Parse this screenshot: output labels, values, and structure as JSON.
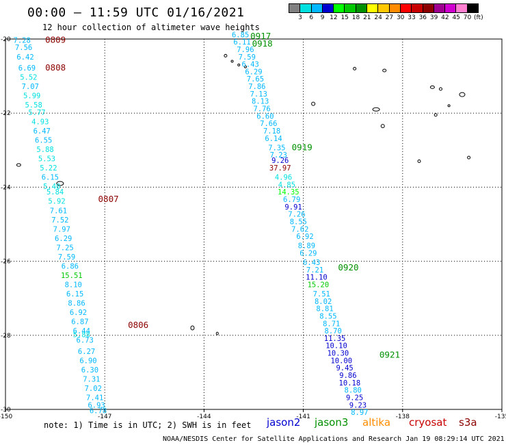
{
  "header": {
    "title": "00:00 – 11:59 UTC 01/16/2021",
    "subtitle": "12 hour collection of altimeter wave heights"
  },
  "colorbar": {
    "colors": [
      "#808080",
      "#00e0e0",
      "#00b8ff",
      "#0000d0",
      "#00ff00",
      "#00c800",
      "#009000",
      "#ffff00",
      "#ffc800",
      "#ff8c00",
      "#ff0000",
      "#c80000",
      "#8c0000",
      "#a00090",
      "#d000d0",
      "#ff80d0",
      "#000000"
    ],
    "labels": [
      "3",
      "6",
      "9",
      "12",
      "15",
      "18",
      "21",
      "24",
      "27",
      "30",
      "33",
      "36",
      "39",
      "42",
      "45",
      "70",
      "(ft)"
    ]
  },
  "axes": {
    "x_ticks": [
      "-150",
      "-147",
      "-144",
      "-141",
      "-138",
      "-135"
    ],
    "y_ticks": [
      "-20",
      "-22",
      "-24",
      "-26",
      "-28",
      "-30"
    ]
  },
  "legend": {
    "note": "note: 1) Time is in UTC; 2) SWH is in feet",
    "satellites": [
      {
        "name": "jason2",
        "color": "#0000d0"
      },
      {
        "name": "jason3",
        "color": "#009000"
      },
      {
        "name": "altika",
        "color": "#ff8c00"
      },
      {
        "name": "cryosat",
        "color": "#c80000"
      },
      {
        "name": "s3a",
        "color": "#8c0000"
      }
    ],
    "credit": "NOAA/NESDIS Center for Satellite Applications and Research   Jan 19 08:29:14 UTC 2021"
  },
  "pass_labels": [
    {
      "text": "0809",
      "color": "#8c0000",
      "lon": -148.8,
      "lat": -20.1
    },
    {
      "text": "0808",
      "color": "#8c0000",
      "lon": -148.8,
      "lat": -20.85
    },
    {
      "text": "0807",
      "color": "#8c0000",
      "lon": -147.2,
      "lat": -24.4
    },
    {
      "text": "0806",
      "color": "#8c0000",
      "lon": -146.3,
      "lat": -27.8
    },
    {
      "text": "0917",
      "color": "#009000",
      "lon": -142.6,
      "lat": -20.0
    },
    {
      "text": "0918",
      "color": "#009000",
      "lon": -142.55,
      "lat": -20.2
    },
    {
      "text": "0919",
      "color": "#009000",
      "lon": -141.35,
      "lat": -23.0
    },
    {
      "text": "0920",
      "color": "#009000",
      "lon": -139.95,
      "lat": -26.25
    },
    {
      "text": "0921",
      "color": "#009000",
      "lon": -138.7,
      "lat": -28.6
    }
  ],
  "chart_data": {
    "type": "scatter",
    "title": "00:00 – 11:59 UTC 01/16/2021",
    "subtitle": "12 hour collection of altimeter wave heights",
    "xlim": [
      -150,
      -135
    ],
    "ylim": [
      -30,
      -20
    ],
    "series": [
      {
        "name": "s3a",
        "points": [
          {
            "lon": -149.5,
            "lat": -20.1,
            "swh": "7.28",
            "color": "#00b8ff"
          },
          {
            "lon": -149.45,
            "lat": -20.3,
            "swh": "7.56",
            "color": "#00b8ff"
          },
          {
            "lon": -149.4,
            "lat": -20.55,
            "swh": "6.42",
            "color": "#00b8ff"
          },
          {
            "lon": -149.35,
            "lat": -20.85,
            "swh": "6.69",
            "color": "#00b8ff"
          },
          {
            "lon": -149.3,
            "lat": -21.1,
            "swh": "5.52",
            "color": "#00e0e0"
          },
          {
            "lon": -149.25,
            "lat": -21.35,
            "swh": "7.07",
            "color": "#00b8ff"
          },
          {
            "lon": -149.2,
            "lat": -21.6,
            "swh": "5.99",
            "color": "#00e0e0"
          },
          {
            "lon": -149.15,
            "lat": -21.85,
            "swh": "5.58",
            "color": "#00e0e0"
          },
          {
            "lon": -149.05,
            "lat": -22.05,
            "swh": "5.77",
            "color": "#00e0e0"
          },
          {
            "lon": -148.95,
            "lat": -22.3,
            "swh": "4.93",
            "color": "#00e0e0"
          },
          {
            "lon": -148.9,
            "lat": -22.55,
            "swh": "6.47",
            "color": "#00b8ff"
          },
          {
            "lon": -148.85,
            "lat": -22.8,
            "swh": "6.55",
            "color": "#00b8ff"
          },
          {
            "lon": -148.8,
            "lat": -23.05,
            "swh": "5.88",
            "color": "#00e0e0"
          },
          {
            "lon": -148.75,
            "lat": -23.3,
            "swh": "5.53",
            "color": "#00e0e0"
          },
          {
            "lon": -148.7,
            "lat": -23.55,
            "swh": "5.22",
            "color": "#00e0e0"
          },
          {
            "lon": -148.65,
            "lat": -23.8,
            "swh": "6.15",
            "color": "#00b8ff"
          },
          {
            "lon": -148.6,
            "lat": -24.05,
            "swh": "5.40",
            "color": "#00e0e0"
          },
          {
            "lon": -148.5,
            "lat": -24.2,
            "swh": "5.84",
            "color": "#00e0e0"
          },
          {
            "lon": -148.45,
            "lat": -24.45,
            "swh": "5.92",
            "color": "#00e0e0"
          },
          {
            "lon": -148.4,
            "lat": -24.7,
            "swh": "7.61",
            "color": "#00b8ff"
          },
          {
            "lon": -148.35,
            "lat": -24.95,
            "swh": "7.52",
            "color": "#00b8ff"
          },
          {
            "lon": -148.3,
            "lat": -25.2,
            "swh": "7.97",
            "color": "#00b8ff"
          },
          {
            "lon": -148.25,
            "lat": -25.45,
            "swh": "6.29",
            "color": "#00b8ff"
          },
          {
            "lon": -148.2,
            "lat": -25.7,
            "swh": "7.25",
            "color": "#00b8ff"
          },
          {
            "lon": -148.15,
            "lat": -25.95,
            "swh": "7.59",
            "color": "#00b8ff"
          },
          {
            "lon": -148.05,
            "lat": -26.2,
            "swh": "6.86",
            "color": "#00b8ff"
          },
          {
            "lon": -148.0,
            "lat": -26.45,
            "swh": "15.51",
            "color": "#00c800"
          },
          {
            "lon": -147.95,
            "lat": -26.7,
            "swh": "8.10",
            "color": "#00b8ff"
          },
          {
            "lon": -147.9,
            "lat": -26.95,
            "swh": "6.15",
            "color": "#00b8ff"
          },
          {
            "lon": -147.85,
            "lat": -27.2,
            "swh": "8.86",
            "color": "#00b8ff"
          },
          {
            "lon": -147.8,
            "lat": -27.45,
            "swh": "6.92",
            "color": "#00b8ff"
          },
          {
            "lon": -147.75,
            "lat": -27.7,
            "swh": "6.87",
            "color": "#00b8ff"
          },
          {
            "lon": -147.7,
            "lat": -27.95,
            "swh": "6.44",
            "color": "#00b8ff"
          },
          {
            "lon": -147.7,
            "lat": -28.05,
            "swh": "5.88",
            "color": "#00e0e0"
          },
          {
            "lon": -147.6,
            "lat": -28.2,
            "swh": "6.73",
            "color": "#00b8ff"
          },
          {
            "lon": -147.55,
            "lat": -28.5,
            "swh": "6.27",
            "color": "#00b8ff"
          },
          {
            "lon": -147.5,
            "lat": -28.75,
            "swh": "6.90",
            "color": "#00b8ff"
          },
          {
            "lon": -147.45,
            "lat": -29.0,
            "swh": "6.30",
            "color": "#00b8ff"
          },
          {
            "lon": -147.4,
            "lat": -29.25,
            "swh": "7.31",
            "color": "#00b8ff"
          },
          {
            "lon": -147.35,
            "lat": -29.5,
            "swh": "7.02",
            "color": "#00b8ff"
          },
          {
            "lon": -147.3,
            "lat": -29.75,
            "swh": "7.41",
            "color": "#00b8ff"
          },
          {
            "lon": -147.25,
            "lat": -29.95,
            "swh": "6.93",
            "color": "#00b8ff"
          },
          {
            "lon": -147.2,
            "lat": -30.1,
            "swh": "6.78",
            "color": "#00b8ff"
          }
        ]
      },
      {
        "name": "jason3",
        "points": [
          {
            "lon": -142.9,
            "lat": -19.95,
            "swh": "6.85",
            "color": "#00b8ff"
          },
          {
            "lon": -142.85,
            "lat": -20.15,
            "swh": "6.11",
            "color": "#00b8ff"
          },
          {
            "lon": -142.75,
            "lat": -20.35,
            "swh": "7.96",
            "color": "#00b8ff"
          },
          {
            "lon": -142.7,
            "lat": -20.55,
            "swh": "7.59",
            "color": "#00b8ff"
          },
          {
            "lon": -142.6,
            "lat": -20.75,
            "swh": "6.43",
            "color": "#00b8ff"
          },
          {
            "lon": -142.5,
            "lat": -20.95,
            "swh": "6.29",
            "color": "#00b8ff"
          },
          {
            "lon": -142.45,
            "lat": -21.15,
            "swh": "7.65",
            "color": "#00b8ff"
          },
          {
            "lon": -142.4,
            "lat": -21.35,
            "swh": "7.86",
            "color": "#00b8ff"
          },
          {
            "lon": -142.35,
            "lat": -21.55,
            "swh": "7.13",
            "color": "#00b8ff"
          },
          {
            "lon": -142.3,
            "lat": -21.75,
            "swh": "8.13",
            "color": "#00b8ff"
          },
          {
            "lon": -142.25,
            "lat": -21.95,
            "swh": "7.76",
            "color": "#00b8ff"
          },
          {
            "lon": -142.15,
            "lat": -22.15,
            "swh": "6.60",
            "color": "#00b8ff"
          },
          {
            "lon": -142.05,
            "lat": -22.35,
            "swh": "7.66",
            "color": "#00b8ff"
          },
          {
            "lon": -141.95,
            "lat": -22.55,
            "swh": "7.18",
            "color": "#00b8ff"
          },
          {
            "lon": -141.9,
            "lat": -22.75,
            "swh": "6.14",
            "color": "#00b8ff"
          },
          {
            "lon": -141.8,
            "lat": -23.0,
            "swh": "7.35",
            "color": "#00b8ff"
          },
          {
            "lon": -141.75,
            "lat": -23.2,
            "swh": "7.23",
            "color": "#00b8ff"
          },
          {
            "lon": -141.7,
            "lat": -23.35,
            "swh": "9.26",
            "color": "#0000d0"
          },
          {
            "lon": -141.7,
            "lat": -23.55,
            "swh": "37.97",
            "color": "#8c0000"
          },
          {
            "lon": -141.6,
            "lat": -23.8,
            "swh": "4.96",
            "color": "#00e0e0"
          },
          {
            "lon": -141.5,
            "lat": -24.0,
            "swh": "4.85",
            "color": "#00e0e0"
          },
          {
            "lon": -141.45,
            "lat": -24.2,
            "swh": "14.35",
            "color": "#00ff00"
          },
          {
            "lon": -141.35,
            "lat": -24.4,
            "swh": "6.79",
            "color": "#00b8ff"
          },
          {
            "lon": -141.3,
            "lat": -24.6,
            "swh": "9.91",
            "color": "#0000d0"
          },
          {
            "lon": -141.2,
            "lat": -24.8,
            "swh": "7.26",
            "color": "#00b8ff"
          },
          {
            "lon": -141.15,
            "lat": -25.0,
            "swh": "8.55",
            "color": "#00b8ff"
          },
          {
            "lon": -141.1,
            "lat": -25.2,
            "swh": "7.62",
            "color": "#00b8ff"
          },
          {
            "lon": -140.95,
            "lat": -25.4,
            "swh": "6.92",
            "color": "#00b8ff"
          },
          {
            "lon": -140.9,
            "lat": -25.65,
            "swh": "8.89",
            "color": "#00b8ff"
          },
          {
            "lon": -140.85,
            "lat": -25.85,
            "swh": "6.29",
            "color": "#00b8ff"
          },
          {
            "lon": -140.75,
            "lat": -26.1,
            "swh": "6.43",
            "color": "#00b8ff"
          },
          {
            "lon": -140.65,
            "lat": -26.3,
            "swh": "7.21",
            "color": "#00b8ff"
          },
          {
            "lon": -140.6,
            "lat": -26.5,
            "swh": "11.10",
            "color": "#0000d0"
          },
          {
            "lon": -140.55,
            "lat": -26.7,
            "swh": "15.20",
            "color": "#00c800"
          },
          {
            "lon": -140.45,
            "lat": -26.95,
            "swh": "7.51",
            "color": "#00b8ff"
          },
          {
            "lon": -140.4,
            "lat": -27.15,
            "swh": "8.02",
            "color": "#00b8ff"
          },
          {
            "lon": -140.35,
            "lat": -27.35,
            "swh": "8.81",
            "color": "#00b8ff"
          },
          {
            "lon": -140.25,
            "lat": -27.55,
            "swh": "8.55",
            "color": "#00b8ff"
          },
          {
            "lon": -140.15,
            "lat": -27.75,
            "swh": "8.71",
            "color": "#00b8ff"
          },
          {
            "lon": -140.1,
            "lat": -27.95,
            "swh": "8.70",
            "color": "#00b8ff"
          },
          {
            "lon": -140.05,
            "lat": -28.15,
            "swh": "11.35",
            "color": "#0000d0"
          },
          {
            "lon": -140.0,
            "lat": -28.35,
            "swh": "10.10",
            "color": "#0000d0"
          },
          {
            "lon": -139.95,
            "lat": -28.55,
            "swh": "10.30",
            "color": "#0000d0"
          },
          {
            "lon": -139.85,
            "lat": -28.75,
            "swh": "10.00",
            "color": "#0000d0"
          },
          {
            "lon": -139.75,
            "lat": -28.95,
            "swh": "9.45",
            "color": "#0000d0"
          },
          {
            "lon": -139.65,
            "lat": -29.15,
            "swh": "9.86",
            "color": "#0000d0"
          },
          {
            "lon": -139.6,
            "lat": -29.35,
            "swh": "10.18",
            "color": "#0000d0"
          },
          {
            "lon": -139.5,
            "lat": -29.55,
            "swh": "8.80",
            "color": "#00b8ff"
          },
          {
            "lon": -139.45,
            "lat": -29.75,
            "swh": "9.25",
            "color": "#0000d0"
          },
          {
            "lon": -139.35,
            "lat": -29.95,
            "swh": "9.23",
            "color": "#0000d0"
          },
          {
            "lon": -139.3,
            "lat": -30.15,
            "swh": "8.97",
            "color": "#00b8ff"
          }
        ]
      }
    ]
  }
}
